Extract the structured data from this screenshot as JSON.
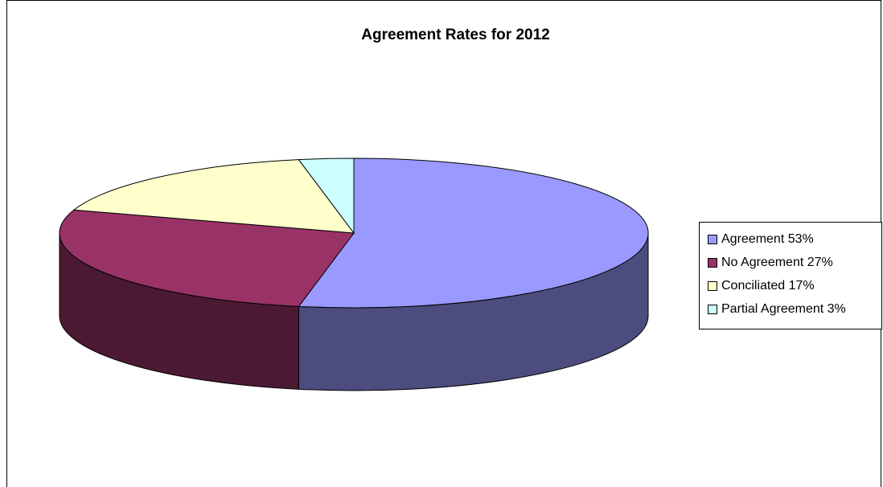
{
  "chart_data": {
    "type": "pie",
    "title": "Agreement Rates for 2012",
    "three_d": true,
    "legend_position": "right",
    "slices": [
      {
        "label": "Agreement 53%",
        "value": 53,
        "color": "#9999ff",
        "side_color": "#4c4c7f"
      },
      {
        "label": "No Agreement 27%",
        "value": 27,
        "color": "#993366",
        "side_color": "#4c1933"
      },
      {
        "label": "Conciliated 17%",
        "value": 17,
        "color": "#ffffcc",
        "side_color": "#7f7f66"
      },
      {
        "label": "Partial Agreement 3%",
        "value": 3,
        "color": "#ccffff",
        "side_color": "#667f7f"
      }
    ]
  }
}
